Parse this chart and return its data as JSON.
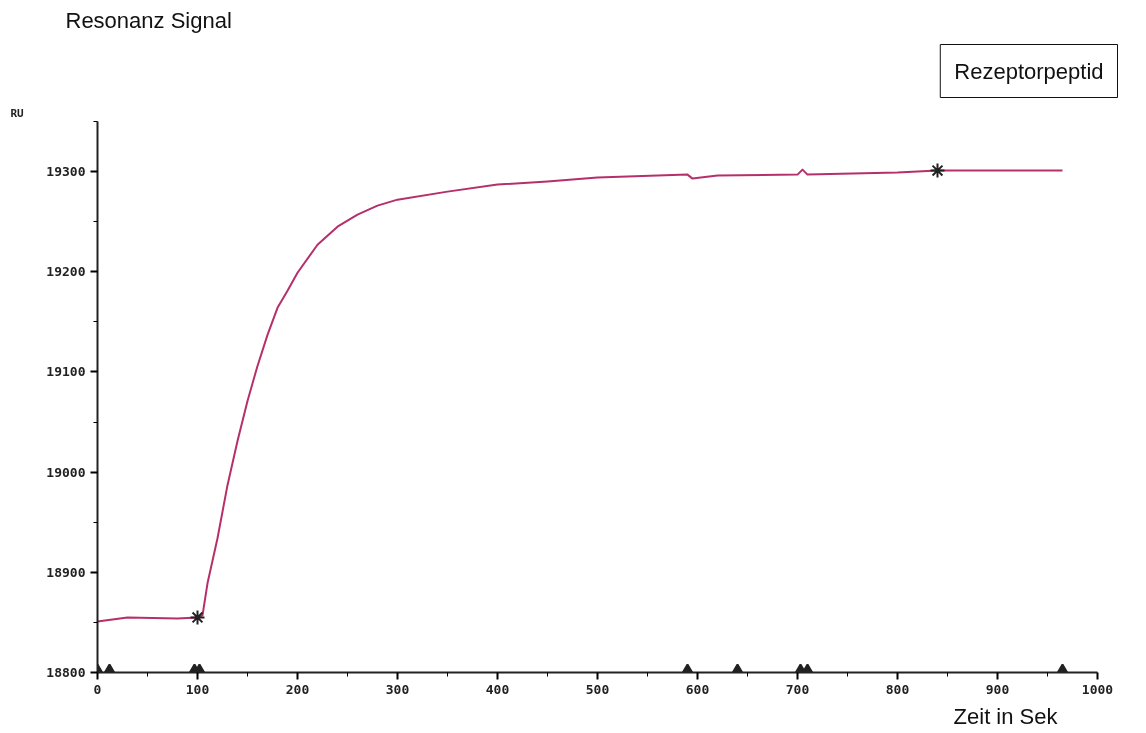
{
  "chart_data": {
    "type": "line",
    "title": "Resonanz Signal",
    "ylabel": "RU",
    "xlabel": "Zeit in Sek",
    "annotations": [
      "Rezeptorpeptid"
    ],
    "xlim": [
      0,
      1000
    ],
    "ylim": [
      18800,
      19350
    ],
    "xticks": [
      0,
      100,
      200,
      300,
      400,
      500,
      600,
      700,
      800,
      900,
      1000
    ],
    "yticks": [
      18800,
      18900,
      19000,
      19100,
      19200,
      19300
    ],
    "grid": false,
    "series": [
      {
        "color": "#b5306a",
        "x": [
          0,
          15,
          30,
          80,
          100,
          105,
          110,
          120,
          130,
          140,
          150,
          160,
          170,
          180,
          190,
          200,
          220,
          240,
          260,
          280,
          300,
          350,
          400,
          450,
          500,
          590,
          595,
          620,
          700,
          705,
          710,
          800,
          840,
          965
        ],
        "values": [
          18851,
          18853,
          18855,
          18854,
          18855,
          18857,
          18889,
          18934,
          18987,
          19031,
          19071,
          19106,
          19137,
          19164,
          19181,
          19199,
          19227,
          19245,
          19257,
          19266,
          19272,
          19280,
          19287,
          19290,
          19294,
          19297,
          19293,
          19296,
          19297,
          19302,
          19297,
          19299,
          19301,
          19301
        ]
      },
      {
        "type": "scatter",
        "marker": "cross",
        "color": "#222222",
        "x": [
          100,
          840
        ],
        "values": [
          18855,
          19301
        ]
      },
      {
        "type": "scatter",
        "marker": "triangle",
        "color": "#222222",
        "x": [
          0,
          12,
          97,
          102,
          590,
          640,
          703,
          710,
          965
        ],
        "values": [
          18800,
          18800,
          18800,
          18800,
          18800,
          18800,
          18800,
          18800,
          18800
        ]
      }
    ]
  }
}
